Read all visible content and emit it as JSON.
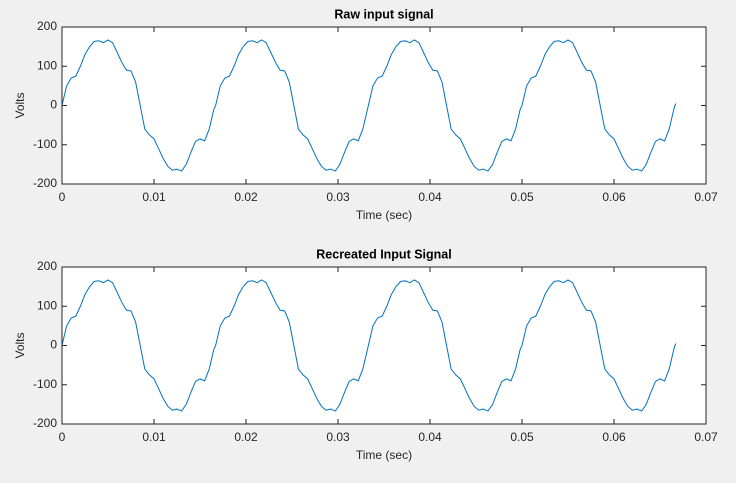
{
  "chart_data": [
    {
      "type": "line",
      "title": "Raw input signal",
      "xlabel": "Time (sec)",
      "ylabel": "Volts",
      "color": "#0072bd",
      "xlim": [
        0,
        0.07
      ],
      "xticks": [
        0,
        0.01,
        0.02,
        0.03,
        0.04,
        0.05,
        0.06,
        0.07
      ],
      "ylim": [
        -200,
        200
      ],
      "yticks": [
        -200,
        -100,
        0,
        100,
        200
      ],
      "x": [
        0,
        0.0005,
        0.001,
        0.0015,
        0.002,
        0.0025,
        0.003,
        0.0035,
        0.004,
        0.0045,
        0.005,
        0.0055,
        0.006,
        0.0065,
        0.007,
        0.0075,
        0.008,
        0.0085,
        0.009,
        0.0095,
        0.01,
        0.0105,
        0.011,
        0.0115,
        0.012,
        0.0125,
        0.013,
        0.0135,
        0.014,
        0.0145,
        0.015,
        0.0155,
        0.016,
        0.0165,
        0.0167,
        0.0172,
        0.0177,
        0.0182,
        0.0187,
        0.0192,
        0.0197,
        0.0202,
        0.0207,
        0.0212,
        0.0217,
        0.0222,
        0.0227,
        0.0232,
        0.0237,
        0.0242,
        0.0247,
        0.0252,
        0.0257,
        0.0262,
        0.0267,
        0.0272,
        0.0277,
        0.0282,
        0.0287,
        0.0292,
        0.0297,
        0.0302,
        0.0307,
        0.0312,
        0.0317,
        0.0322,
        0.0327,
        0.0332,
        0.0333,
        0.0338,
        0.0343,
        0.0348,
        0.0353,
        0.0358,
        0.0363,
        0.0368,
        0.0373,
        0.0378,
        0.0383,
        0.0388,
        0.0393,
        0.0398,
        0.0403,
        0.0408,
        0.0413,
        0.0418,
        0.0423,
        0.0428,
        0.0433,
        0.0438,
        0.0443,
        0.0448,
        0.0453,
        0.0458,
        0.0463,
        0.0468,
        0.0473,
        0.0478,
        0.0483,
        0.0488,
        0.0493,
        0.0498,
        0.05,
        0.0505,
        0.051,
        0.0515,
        0.052,
        0.0525,
        0.053,
        0.0535,
        0.054,
        0.0545,
        0.055,
        0.0555,
        0.056,
        0.0565,
        0.057,
        0.0575,
        0.058,
        0.0585,
        0.059,
        0.0595,
        0.06,
        0.0605,
        0.061,
        0.0615,
        0.062,
        0.0625,
        0.063,
        0.0635,
        0.064,
        0.0645,
        0.065,
        0.0655,
        0.066,
        0.0665,
        0.0667
      ],
      "values": [
        0,
        50,
        70,
        75,
        100,
        130,
        150,
        163,
        165,
        160,
        167,
        160,
        135,
        110,
        90,
        88,
        60,
        0,
        -60,
        -75,
        -85,
        -110,
        -135,
        -155,
        -165,
        -162,
        -167,
        -150,
        -120,
        -92,
        -85,
        -90,
        -60,
        -10,
        0,
        50,
        70,
        75,
        100,
        130,
        150,
        163,
        165,
        160,
        167,
        160,
        135,
        110,
        90,
        88,
        60,
        0,
        -60,
        -75,
        -85,
        -110,
        -135,
        -155,
        -165,
        -162,
        -167,
        -150,
        -120,
        -92,
        -85,
        -90,
        -60,
        -10,
        0,
        50,
        70,
        75,
        100,
        130,
        150,
        163,
        165,
        160,
        167,
        160,
        135,
        110,
        90,
        88,
        60,
        0,
        -60,
        -75,
        -85,
        -110,
        -135,
        -155,
        -165,
        -162,
        -167,
        -150,
        -120,
        -92,
        -85,
        -90,
        -60,
        -10,
        0,
        50,
        70,
        75,
        100,
        130,
        150,
        163,
        165,
        160,
        167,
        160,
        135,
        110,
        90,
        88,
        60,
        0,
        -60,
        -75,
        -85,
        -110,
        -135,
        -155,
        -165,
        -162,
        -167,
        -150,
        -120,
        -92,
        -85,
        -90,
        -60,
        -10,
        5
      ]
    },
    {
      "type": "line",
      "title": "Recreated Input Signal",
      "xlabel": "Time (sec)",
      "ylabel": "Volts",
      "color": "#0072bd",
      "xlim": [
        0,
        0.07
      ],
      "xticks": [
        0,
        0.01,
        0.02,
        0.03,
        0.04,
        0.05,
        0.06,
        0.07
      ],
      "ylim": [
        -200,
        200
      ],
      "yticks": [
        -200,
        -100,
        0,
        100,
        200
      ],
      "x": [
        0,
        0.0005,
        0.001,
        0.0015,
        0.002,
        0.0025,
        0.003,
        0.0035,
        0.004,
        0.0045,
        0.005,
        0.0055,
        0.006,
        0.0065,
        0.007,
        0.0075,
        0.008,
        0.0085,
        0.009,
        0.0095,
        0.01,
        0.0105,
        0.011,
        0.0115,
        0.012,
        0.0125,
        0.013,
        0.0135,
        0.014,
        0.0145,
        0.015,
        0.0155,
        0.016,
        0.0165,
        0.0167,
        0.0172,
        0.0177,
        0.0182,
        0.0187,
        0.0192,
        0.0197,
        0.0202,
        0.0207,
        0.0212,
        0.0217,
        0.0222,
        0.0227,
        0.0232,
        0.0237,
        0.0242,
        0.0247,
        0.0252,
        0.0257,
        0.0262,
        0.0267,
        0.0272,
        0.0277,
        0.0282,
        0.0287,
        0.0292,
        0.0297,
        0.0302,
        0.0307,
        0.0312,
        0.0317,
        0.0322,
        0.0327,
        0.0332,
        0.0333,
        0.0338,
        0.0343,
        0.0348,
        0.0353,
        0.0358,
        0.0363,
        0.0368,
        0.0373,
        0.0378,
        0.0383,
        0.0388,
        0.0393,
        0.0398,
        0.0403,
        0.0408,
        0.0413,
        0.0418,
        0.0423,
        0.0428,
        0.0433,
        0.0438,
        0.0443,
        0.0448,
        0.0453,
        0.0458,
        0.0463,
        0.0468,
        0.0473,
        0.0478,
        0.0483,
        0.0488,
        0.0493,
        0.0498,
        0.05,
        0.0505,
        0.051,
        0.0515,
        0.052,
        0.0525,
        0.053,
        0.0535,
        0.054,
        0.0545,
        0.055,
        0.0555,
        0.056,
        0.0565,
        0.057,
        0.0575,
        0.058,
        0.0585,
        0.059,
        0.0595,
        0.06,
        0.0605,
        0.061,
        0.0615,
        0.062,
        0.0625,
        0.063,
        0.0635,
        0.064,
        0.0645,
        0.065,
        0.0655,
        0.066,
        0.0665,
        0.0667
      ],
      "values": [
        0,
        50,
        70,
        75,
        100,
        130,
        150,
        163,
        165,
        160,
        167,
        160,
        135,
        110,
        90,
        88,
        60,
        0,
        -60,
        -75,
        -85,
        -110,
        -135,
        -155,
        -165,
        -162,
        -167,
        -150,
        -120,
        -92,
        -85,
        -90,
        -60,
        -10,
        0,
        50,
        70,
        75,
        100,
        130,
        150,
        163,
        165,
        160,
        167,
        160,
        135,
        110,
        90,
        88,
        60,
        0,
        -60,
        -75,
        -85,
        -110,
        -135,
        -155,
        -165,
        -162,
        -167,
        -150,
        -120,
        -92,
        -85,
        -90,
        -60,
        -10,
        0,
        50,
        70,
        75,
        100,
        130,
        150,
        163,
        165,
        160,
        167,
        160,
        135,
        110,
        90,
        88,
        60,
        0,
        -60,
        -75,
        -85,
        -110,
        -135,
        -155,
        -165,
        -162,
        -167,
        -150,
        -120,
        -92,
        -85,
        -90,
        -60,
        -10,
        0,
        50,
        70,
        75,
        100,
        130,
        150,
        163,
        165,
        160,
        167,
        160,
        135,
        110,
        90,
        88,
        60,
        0,
        -60,
        -75,
        -85,
        -110,
        -135,
        -155,
        -165,
        -162,
        -167,
        -150,
        -120,
        -92,
        -85,
        -90,
        -60,
        -10,
        5
      ]
    }
  ]
}
